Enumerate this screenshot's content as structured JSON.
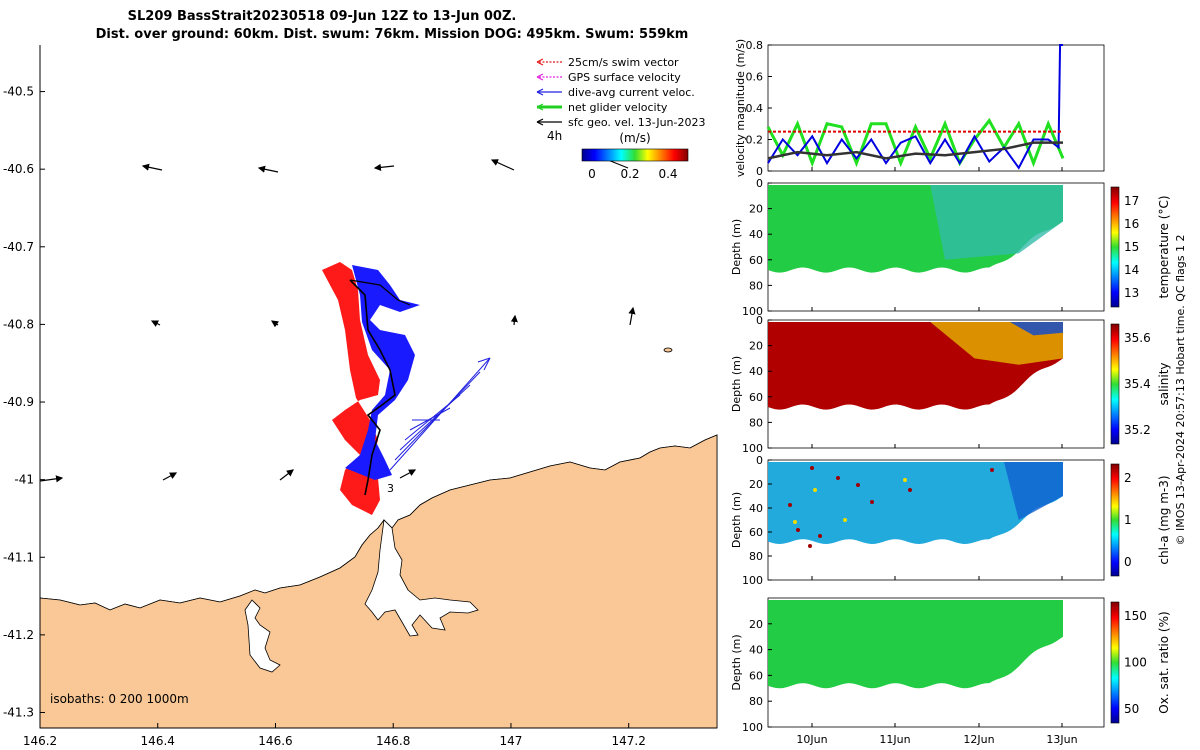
{
  "title": {
    "line1": "SL209 BassStrait20230518 09-Jun 12Z to 13-Jun 00Z.",
    "line2": "Dist. over ground: 60km. Dist. swum: 76km. Mission DOG: 495km. Swum: 559km"
  },
  "map": {
    "lon_ticks": [
      "146.2",
      "146.4",
      "146.6",
      "146.8",
      "147",
      "147.2"
    ],
    "lat_ticks": [
      "-40.5",
      "-40.6",
      "-40.7",
      "-40.8",
      "-40.9",
      "-41",
      "-41.1",
      "-41.2",
      "-41.3"
    ],
    "xlim": [
      146.2,
      147.35
    ],
    "ylim": [
      -41.32,
      -40.44
    ],
    "land_color": "#f9c896",
    "legend": [
      {
        "label": "25cm/s swim vector",
        "color": "#e41a1c"
      },
      {
        "label": "GPS surface velocity",
        "color": "#e020e0"
      },
      {
        "label": "dive-avg current veloc.",
        "color": "#2020e0"
      },
      {
        "label": "net glider velocity",
        "color": "#20d020"
      },
      {
        "label": "sfc geo. vel. 13-Jun-2023",
        "color": "#000000"
      }
    ],
    "scale_label": "4h",
    "colorbar_unit": "(m/s)",
    "colorbar_ticks": [
      "0",
      "0.2",
      "0.4"
    ],
    "isobaths_label": "isobaths: 0   200  1000m",
    "point_label": "3"
  },
  "chart_data": [
    {
      "type": "line",
      "ylabel": "velocity magnitude (m/s)",
      "ylim": [
        0,
        0.8
      ],
      "y_ticks": [
        "0",
        "0.2",
        "0.4",
        "0.6",
        "0.8"
      ],
      "x_ticks": [
        "10Jun",
        "11Jun",
        "12Jun",
        "13Jun"
      ],
      "series": [
        {
          "color": "#20e020",
          "x": [
            0,
            0.05,
            0.1,
            0.15,
            0.2,
            0.25,
            0.3,
            0.35,
            0.4,
            0.45,
            0.5,
            0.55,
            0.6,
            0.65,
            0.7,
            0.75,
            0.8,
            0.85,
            0.9,
            0.95,
            1.0
          ],
          "values": [
            0.28,
            0.1,
            0.3,
            0.05,
            0.3,
            0.28,
            0.05,
            0.3,
            0.3,
            0.05,
            0.28,
            0.08,
            0.3,
            0.05,
            0.2,
            0.32,
            0.15,
            0.3,
            0.05,
            0.3,
            0.08
          ]
        },
        {
          "color": "#0000e0",
          "x": [
            0,
            0.05,
            0.1,
            0.15,
            0.2,
            0.25,
            0.3,
            0.35,
            0.4,
            0.45,
            0.5,
            0.55,
            0.6,
            0.65,
            0.7,
            0.75,
            0.8,
            0.85,
            0.9,
            0.95,
            0.985,
            0.99,
            1.0
          ],
          "values": [
            0.05,
            0.2,
            0.1,
            0.22,
            0.05,
            0.2,
            0.08,
            0.2,
            0.05,
            0.18,
            0.22,
            0.05,
            0.2,
            0.05,
            0.22,
            0.06,
            0.15,
            0.02,
            0.2,
            0.2,
            0.15,
            0.8,
            0.8
          ]
        },
        {
          "color": "#333333",
          "x": [
            0,
            0.1,
            0.2,
            0.3,
            0.4,
            0.5,
            0.6,
            0.7,
            0.8,
            0.9,
            1.0
          ],
          "values": [
            0.08,
            0.12,
            0.1,
            0.12,
            0.08,
            0.11,
            0.1,
            0.12,
            0.14,
            0.18,
            0.18
          ]
        },
        {
          "color": "#e00000",
          "x": [
            0,
            1.0
          ],
          "values": [
            0.25,
            0.25
          ]
        }
      ]
    },
    {
      "type": "heatmap",
      "ylabel": "Depth (m)",
      "clabel": "temperature (°C)",
      "y_ticks": [
        "0",
        "20",
        "40",
        "60",
        "80",
        "100"
      ],
      "c_ticks": [
        "13",
        "14",
        "15",
        "16",
        "17"
      ],
      "x_ticks": [
        "10Jun",
        "11Jun",
        "12Jun",
        "13Jun"
      ]
    },
    {
      "type": "heatmap",
      "ylabel": "Depth (m)",
      "clabel": "salinity",
      "y_ticks": [
        "0",
        "20",
        "40",
        "60",
        "80",
        "100"
      ],
      "c_ticks": [
        "35.2",
        "35.4",
        "35.6"
      ],
      "x_ticks": [
        "10Jun",
        "11Jun",
        "12Jun",
        "13Jun"
      ]
    },
    {
      "type": "heatmap",
      "ylabel": "Depth (m)",
      "clabel": "chl-a (mg m-3)",
      "y_ticks": [
        "0",
        "20",
        "40",
        "60",
        "80",
        "100"
      ],
      "c_ticks": [
        "0",
        "1",
        "2"
      ],
      "x_ticks": [
        "10Jun",
        "11Jun",
        "12Jun",
        "13Jun"
      ]
    },
    {
      "type": "heatmap",
      "ylabel": "Depth (m)",
      "clabel": "Ox. sat. ratio (%)",
      "y_ticks": [
        "20",
        "40",
        "60",
        "80",
        "100"
      ],
      "c_ticks": [
        "50",
        "100",
        "150"
      ],
      "x_ticks": [
        "10Jun",
        "11Jun",
        "12Jun",
        "13Jun"
      ]
    }
  ],
  "side_note": "© IMOS 13-Apr-2024 20:57:13 Hobart time. QC flags 1  2"
}
